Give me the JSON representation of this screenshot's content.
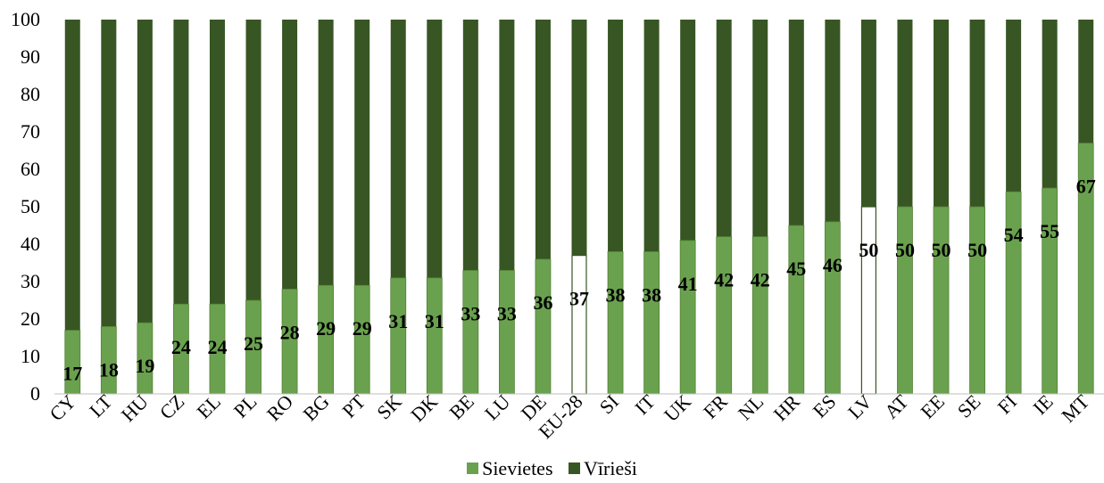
{
  "colors": {
    "women": "#6aa14f",
    "women_edge": "#548235",
    "men": "#375623",
    "highlight": "#ffffff",
    "highlight_edge": "#375623"
  },
  "legend": {
    "women_label": "Sievietes",
    "men_label": "Vīrieši"
  },
  "chart_data": {
    "type": "bar",
    "stacked": true,
    "categories": [
      "CY",
      "LT",
      "HU",
      "CZ",
      "EL",
      "PL",
      "RO",
      "BG",
      "PT",
      "SK",
      "DK",
      "BE",
      "LU",
      "DE",
      "EU-28",
      "SI",
      "IT",
      "UK",
      "FR",
      "NL",
      "HR",
      "ES",
      "LV",
      "AT",
      "EE",
      "SE",
      "FI",
      "IE",
      "MT"
    ],
    "series": [
      {
        "name": "Sievietes",
        "values": [
          17,
          18,
          19,
          24,
          24,
          25,
          28,
          29,
          29,
          31,
          31,
          33,
          33,
          36,
          37,
          38,
          38,
          41,
          42,
          42,
          45,
          46,
          50,
          50,
          50,
          50,
          54,
          55,
          67
        ]
      },
      {
        "name": "Vīrieši",
        "values": [
          83,
          82,
          81,
          76,
          76,
          75,
          72,
          71,
          71,
          69,
          69,
          67,
          67,
          64,
          63,
          62,
          62,
          59,
          58,
          58,
          55,
          54,
          50,
          50,
          50,
          50,
          46,
          45,
          33
        ]
      }
    ],
    "data_labels": [
      "17",
      "18",
      "19",
      "24",
      "24",
      "25",
      "28",
      "29",
      "29",
      "31",
      "31",
      "33",
      "33",
      "36",
      "37",
      "38",
      "38",
      "41",
      "42",
      "42",
      "45",
      "46",
      "50",
      "50",
      "50",
      "50",
      "54",
      "55",
      "67"
    ],
    "highlighted_categories": [
      "EU-28",
      "LV"
    ],
    "y_ticks": [
      "0",
      "10",
      "20",
      "30",
      "40",
      "50",
      "60",
      "70",
      "80",
      "90",
      "100"
    ],
    "ylim": [
      0,
      100
    ],
    "grid": false,
    "legend_position": "bottom"
  }
}
